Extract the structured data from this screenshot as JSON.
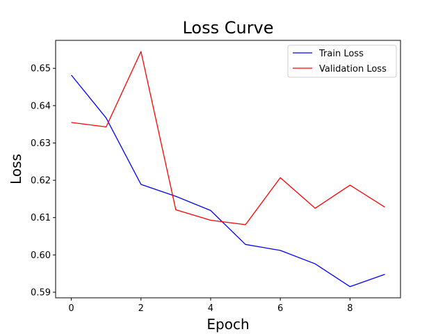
{
  "chart_data": {
    "type": "line",
    "title": "Loss Curve",
    "xlabel": "Epoch",
    "ylabel": "Loss",
    "x": [
      0,
      1,
      2,
      3,
      4,
      5,
      6,
      7,
      8,
      9
    ],
    "xlim": [
      -0.45,
      9.45
    ],
    "ylim": [
      0.5885,
      0.6575
    ],
    "xticks": [
      0,
      2,
      4,
      6,
      8
    ],
    "yticks": [
      0.59,
      0.6,
      0.61,
      0.62,
      0.63,
      0.64,
      0.65
    ],
    "xtick_labels": [
      "0",
      "2",
      "4",
      "6",
      "8"
    ],
    "ytick_labels": [
      "0.59",
      "0.60",
      "0.61",
      "0.62",
      "0.63",
      "0.64",
      "0.65"
    ],
    "grid": false,
    "legend_position": "top-right",
    "series": [
      {
        "name": "Train Loss",
        "color": "#0000ff",
        "values": [
          0.6482,
          0.6367,
          0.6189,
          0.6157,
          0.6119,
          0.6028,
          0.6012,
          0.5976,
          0.5915,
          0.5948
        ]
      },
      {
        "name": "Validation Loss",
        "color": "#ff0000",
        "values": [
          0.6355,
          0.6343,
          0.6545,
          0.6121,
          0.6093,
          0.6081,
          0.6207,
          0.6125,
          0.6187,
          0.6128
        ]
      }
    ]
  }
}
